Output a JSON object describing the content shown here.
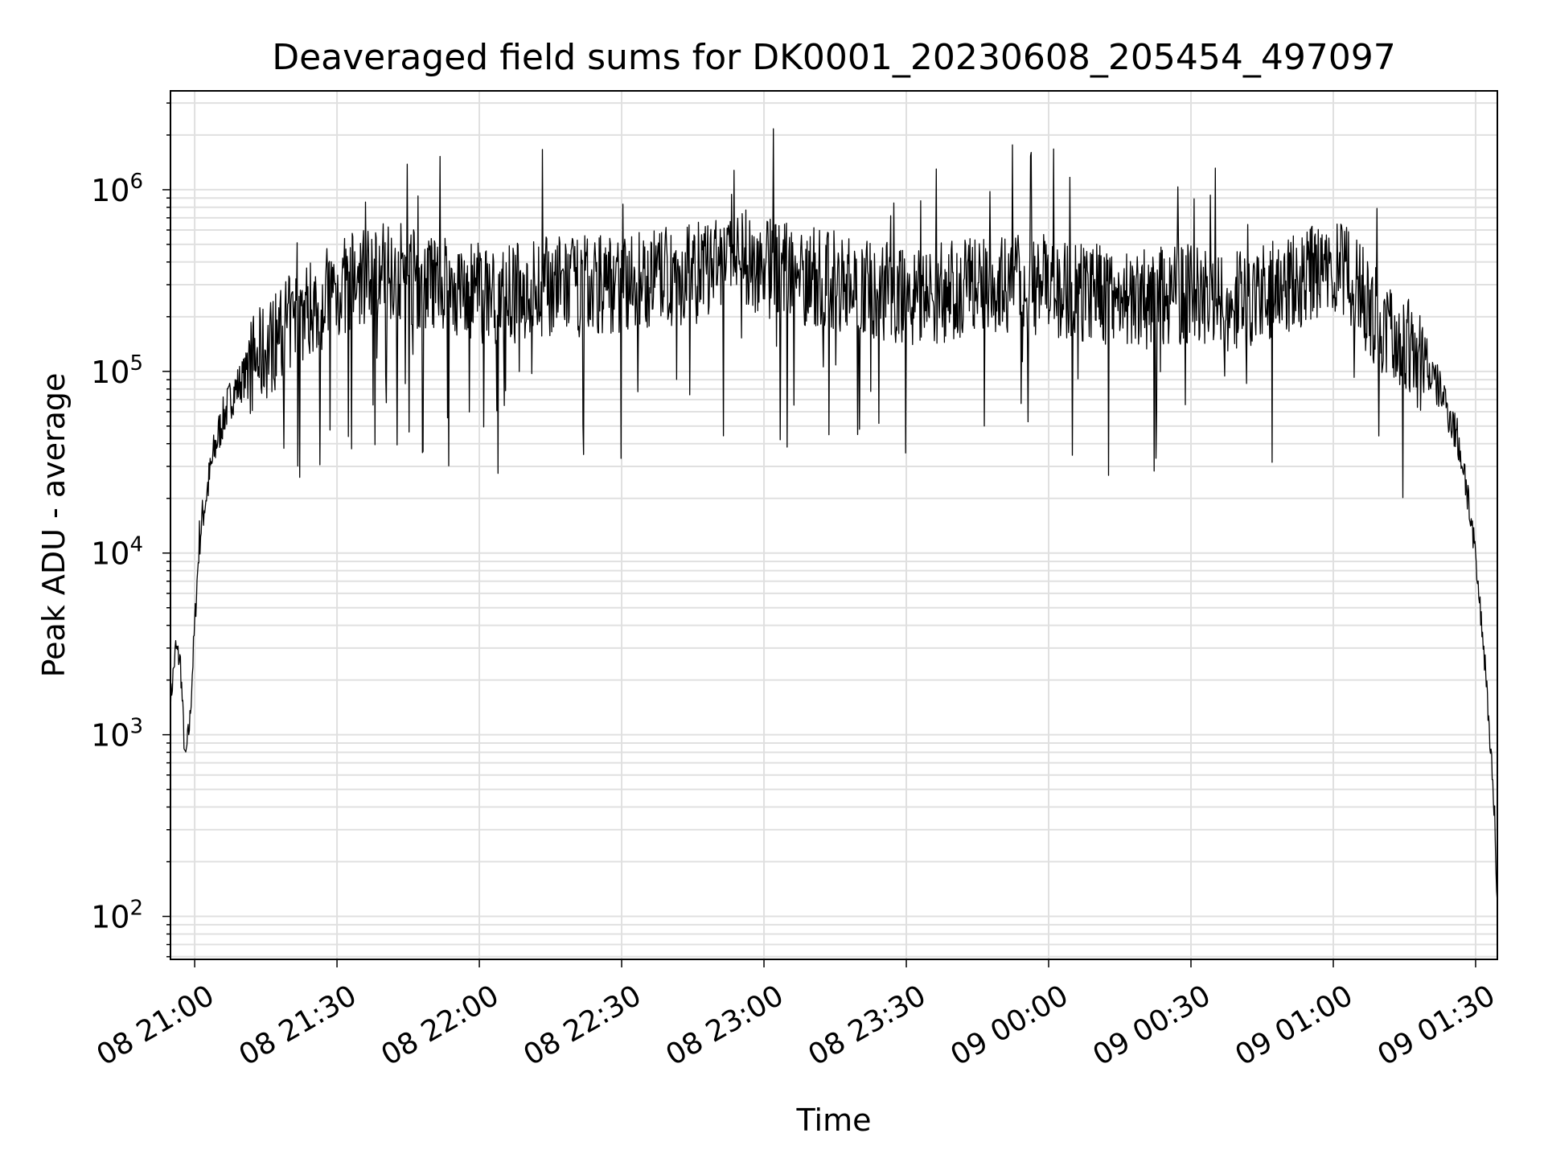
{
  "chart_data": {
    "type": "line",
    "title": "Deaveraged field sums for DK0001_20230608_205454_497097",
    "xlabel": "Time",
    "ylabel": "Peak ADU - average",
    "yscale": "log",
    "ylim": [
      58,
      3500000
    ],
    "xlim": [
      "2023-06-08 20:54:54",
      "2023-06-09 01:34:35"
    ],
    "grid": true,
    "line_color": "#000000",
    "x_ticks": [
      {
        "t": "2023-06-08 21:00",
        "label": "08 21:00"
      },
      {
        "t": "2023-06-08 21:30",
        "label": "08 21:30"
      },
      {
        "t": "2023-06-08 22:00",
        "label": "08 22:00"
      },
      {
        "t": "2023-06-08 22:30",
        "label": "08 22:30"
      },
      {
        "t": "2023-06-08 23:00",
        "label": "08 23:00"
      },
      {
        "t": "2023-06-08 23:30",
        "label": "08 23:30"
      },
      {
        "t": "2023-06-09 00:00",
        "label": "09 00:00"
      },
      {
        "t": "2023-06-09 00:30",
        "label": "09 00:30"
      },
      {
        "t": "2023-06-09 01:00",
        "label": "09 01:00"
      },
      {
        "t": "2023-06-09 01:30",
        "label": "09 01:30"
      }
    ],
    "y_ticks": [
      {
        "value": 100,
        "exp": "2"
      },
      {
        "value": 1000,
        "exp": "3"
      },
      {
        "value": 10000,
        "exp": "4"
      },
      {
        "value": 100000,
        "exp": "5"
      },
      {
        "value": 1000000,
        "exp": "6"
      }
    ],
    "series": [
      {
        "x": [
          "2023-06-08 20:54:54",
          "2023-06-08 20:56:00",
          "2023-06-08 20:57:00",
          "2023-06-08 20:58:00",
          "2023-06-08 20:59:00",
          "2023-06-08 21:00:00",
          "2023-06-08 21:01:00",
          "2023-06-08 21:02:00",
          "2023-06-08 21:03:00",
          "2023-06-08 21:04:00",
          "2023-06-08 21:05:00",
          "2023-06-08 21:06:00",
          "2023-06-08 21:07:00",
          "2023-06-08 21:08:00",
          "2023-06-08 21:10:00",
          "2023-06-08 21:12:00",
          "2023-06-08 21:14:00",
          "2023-06-08 21:16:00",
          "2023-06-08 21:18:00",
          "2023-06-08 21:20:00",
          "2023-06-08 21:22:00",
          "2023-06-08 21:24:00",
          "2023-06-08 21:26:00",
          "2023-06-08 21:28:00",
          "2023-06-08 21:30:00",
          "2023-06-08 21:34:00",
          "2023-06-08 21:38:00",
          "2023-06-08 21:42:00",
          "2023-06-08 21:46:00",
          "2023-06-08 21:50:00",
          "2023-06-08 21:55:00",
          "2023-06-08 22:00:00",
          "2023-06-08 22:05:00",
          "2023-06-08 22:10:00",
          "2023-06-08 22:15:00",
          "2023-06-08 22:20:00",
          "2023-06-08 22:25:00",
          "2023-06-08 22:30:00",
          "2023-06-08 22:35:00",
          "2023-06-08 22:40:00",
          "2023-06-08 22:45:00",
          "2023-06-08 22:50:00",
          "2023-06-08 22:55:00",
          "2023-06-08 23:00:00",
          "2023-06-08 23:05:00",
          "2023-06-08 23:10:00",
          "2023-06-08 23:15:00",
          "2023-06-08 23:20:00",
          "2023-06-08 23:25:00",
          "2023-06-08 23:30:00",
          "2023-06-08 23:35:00",
          "2023-06-08 23:40:00",
          "2023-06-08 23:45:00",
          "2023-06-08 23:50:00",
          "2023-06-08 23:55:00",
          "2023-06-09 00:00:00",
          "2023-06-09 00:05:00",
          "2023-06-09 00:10:00",
          "2023-06-09 00:15:00",
          "2023-06-09 00:20:00",
          "2023-06-09 00:25:00",
          "2023-06-09 00:30:00",
          "2023-06-09 00:35:00",
          "2023-06-09 00:40:00",
          "2023-06-09 00:45:00",
          "2023-06-09 00:50:00",
          "2023-06-09 00:55:00",
          "2023-06-09 01:00:00",
          "2023-06-09 01:04:00",
          "2023-06-09 01:08:00",
          "2023-06-09 01:12:00",
          "2023-06-09 01:16:00",
          "2023-06-09 01:20:00",
          "2023-06-09 01:23:00",
          "2023-06-09 01:26:00",
          "2023-06-09 01:28:00",
          "2023-06-09 01:30:00",
          "2023-06-09 01:32:00",
          "2023-06-09 01:33:00",
          "2023-06-09 01:34:00",
          "2023-06-09 01:34:35"
        ],
        "y": [
          1500,
          3000,
          2500,
          700,
          1200,
          4000,
          12000,
          18000,
          25000,
          35000,
          45000,
          55000,
          65000,
          75000,
          90000,
          110000,
          120000,
          140000,
          160000,
          180000,
          200000,
          220000,
          240000,
          260000,
          280000,
          320000,
          350000,
          370000,
          330000,
          300000,
          280000,
          270000,
          260000,
          280000,
          300000,
          290000,
          310000,
          300000,
          320000,
          330000,
          340000,
          380000,
          420000,
          380000,
          350000,
          330000,
          320000,
          300000,
          280000,
          270000,
          260000,
          280000,
          300000,
          310000,
          290000,
          300000,
          280000,
          270000,
          260000,
          250000,
          260000,
          270000,
          250000,
          240000,
          260000,
          300000,
          340000,
          360000,
          320000,
          220000,
          160000,
          130000,
          100000,
          75000,
          45000,
          25000,
          9000,
          2500,
          1000,
          350,
          120
        ],
        "noise_band_note": null
      }
    ]
  }
}
